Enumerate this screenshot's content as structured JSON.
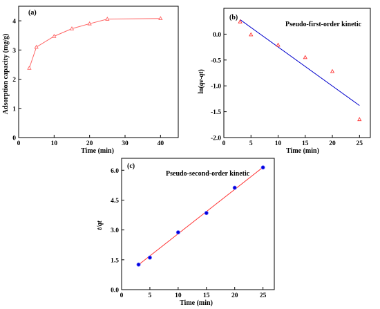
{
  "chart_data": [
    {
      "type": "line",
      "panel_label": "(a)",
      "title": "",
      "xlabel": "Time (min)",
      "ylabel": "Adsorption capacity (mg/g)",
      "xlim": [
        0,
        45
      ],
      "ylim": [
        0,
        4.5
      ],
      "xticks": [
        0,
        10,
        20,
        30,
        40
      ],
      "yticks": [
        0,
        1,
        2,
        3,
        4
      ],
      "grid": false,
      "colors": {
        "series": "#ff6666"
      },
      "series": [
        {
          "x": [
            3,
            5,
            10,
            15,
            20,
            25,
            40
          ],
          "y": [
            2.38,
            3.1,
            3.47,
            3.73,
            3.9,
            4.06,
            4.08
          ]
        }
      ]
    },
    {
      "type": "scatter",
      "panel_label": "(b)",
      "title": "Pseudo-first-order kinetic",
      "xlabel": "Time (min)",
      "ylabel": "ln(qe-qt)",
      "xlim": [
        0,
        27
      ],
      "ylim": [
        -2.0,
        0.5
      ],
      "xticks": [
        0,
        5,
        10,
        15,
        20,
        25
      ],
      "yticks": [
        0.0,
        -0.5,
        -1.0,
        -1.5,
        -2.0
      ],
      "ytick_labels": [
        "0.0",
        "-0.5",
        "-1.0",
        "-1.5",
        "-2.0"
      ],
      "grid": false,
      "colors": {
        "points": "#ff3333",
        "fit": "#0000cc"
      },
      "points": {
        "x": [
          3,
          5,
          10,
          15,
          20,
          25
        ],
        "y": [
          0.24,
          -0.01,
          -0.21,
          -0.45,
          -0.72,
          -1.65
        ]
      },
      "fit_line": {
        "x": [
          3,
          25
        ],
        "y": [
          0.28,
          -1.38
        ]
      }
    },
    {
      "type": "scatter",
      "panel_label": "(c)",
      "title": "Pseudo-second-order kinetic",
      "xlabel": "Time (min)",
      "ylabel": "t/qt",
      "xlim": [
        0,
        27
      ],
      "ylim": [
        0,
        6.6
      ],
      "xticks": [
        0,
        5,
        10,
        15,
        20,
        25
      ],
      "yticks": [
        0.0,
        1.5,
        3.0,
        4.5,
        6.0
      ],
      "ytick_labels": [
        "0.0",
        "1.5",
        "3.0",
        "4.5",
        "6.0"
      ],
      "grid": false,
      "colors": {
        "points": "#0000dd",
        "fit": "#ff3333"
      },
      "points": {
        "x": [
          3,
          5,
          10,
          15,
          20,
          25
        ],
        "y": [
          1.26,
          1.61,
          2.88,
          3.85,
          5.12,
          6.14
        ]
      },
      "fit_line": {
        "x": [
          3,
          25
        ],
        "y": [
          1.25,
          6.15
        ]
      }
    }
  ]
}
